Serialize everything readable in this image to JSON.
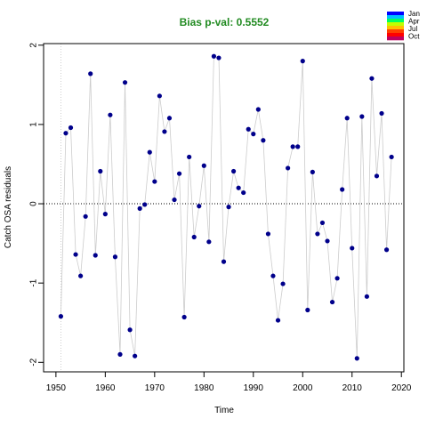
{
  "chart_data": {
    "type": "scatter",
    "title": "Bias p-val: 0.5552",
    "title_color": "#228B22",
    "xlabel": "Time",
    "ylabel": "Catch OSA residuals",
    "xlim": [
      1947.5,
      2020.5
    ],
    "ylim": [
      -2.12,
      2.02
    ],
    "x_ticks": [
      1950,
      1960,
      1970,
      1980,
      1990,
      2000,
      2010,
      2020
    ],
    "x_tick_labels": [
      "1950",
      "1960",
      "1970",
      "1980",
      "1990",
      "2000",
      "2010",
      "2020"
    ],
    "y_ticks": [
      -2,
      -1,
      0,
      1,
      2
    ],
    "y_tick_labels": [
      "-2",
      "-1",
      "0",
      "1",
      "2"
    ],
    "reference_lines": {
      "horizontal_y": 0,
      "vertical_x": 1951
    },
    "grid": false,
    "point_color": "#00008B",
    "line_color": "#cccccc",
    "legend": {
      "placement": "top-right",
      "entries": [
        "Jan",
        "Apr",
        "Jul",
        "Oct"
      ],
      "colors": [
        "#0000ff",
        "#00c0ff",
        "#00ff60",
        "#c0ff00",
        "#ffc000",
        "#ff4000",
        "#ff0000",
        "#c00060"
      ]
    },
    "series": [
      {
        "x": [
          1951,
          1952,
          1953,
          1954,
          1955,
          1956,
          1957,
          1958,
          1959,
          1960,
          1961,
          1962,
          1963,
          1964,
          1965,
          1966,
          1967,
          1968,
          1969,
          1970,
          1971,
          1972,
          1973,
          1974,
          1975,
          1976,
          1977,
          1978,
          1979,
          1980,
          1981,
          1982,
          1983,
          1984,
          1985,
          1986,
          1987,
          1988,
          1989,
          1990,
          1991,
          1992,
          1993,
          1994,
          1995,
          1996,
          1997,
          1998,
          1999,
          2000,
          2001,
          2002,
          2003,
          2004,
          2005,
          2006,
          2007,
          2008,
          2009,
          2010,
          2011,
          2012,
          2013,
          2014,
          2015,
          2016,
          2017,
          2018
        ],
        "y": [
          -1.42,
          0.89,
          0.96,
          -0.64,
          -0.91,
          -0.16,
          1.64,
          -0.65,
          0.41,
          -0.13,
          1.12,
          -0.67,
          -1.9,
          1.53,
          -1.59,
          -1.92,
          -0.06,
          -0.01,
          0.65,
          0.28,
          1.36,
          0.91,
          1.08,
          0.05,
          0.38,
          -1.43,
          0.59,
          -0.42,
          -0.03,
          0.48,
          -0.48,
          1.86,
          1.84,
          -0.73,
          -0.04,
          0.41,
          0.2,
          0.14,
          0.94,
          0.88,
          1.19,
          0.8,
          -0.38,
          -0.91,
          -1.47,
          -1.01,
          0.45,
          0.72,
          0.72,
          1.8,
          -1.34,
          0.4,
          -0.38,
          -0.24,
          -0.47,
          -1.24,
          -0.94,
          0.18,
          1.08,
          -0.56,
          -1.95,
          1.1,
          -1.17,
          1.58,
          0.35,
          1.14,
          -0.58,
          0.59
        ]
      }
    ]
  }
}
